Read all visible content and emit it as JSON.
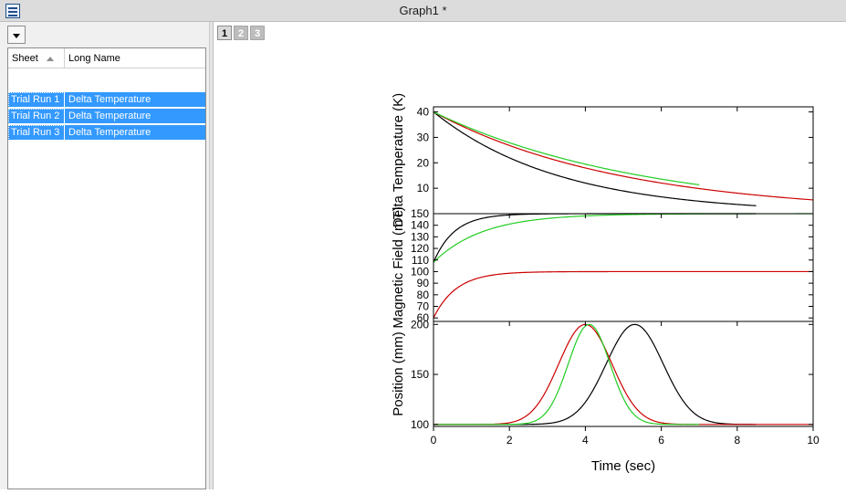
{
  "window": {
    "title": "Graph1 *",
    "icon": "graph-window-icon"
  },
  "sheet_list": {
    "columns": {
      "sheet": "Sheet",
      "long_name": "Long Name"
    },
    "rows": [
      {
        "sheet": "Trial Run 1",
        "long_name": "Delta Temperature"
      },
      {
        "sheet": "Trial Run 2",
        "long_name": "Delta Temperature"
      },
      {
        "sheet": "Trial Run 3",
        "long_name": "Delta Temperature"
      }
    ]
  },
  "page_tabs": [
    "1",
    "2",
    "3"
  ],
  "chart_data": {
    "type": "line",
    "xlabel": "Time (sec)",
    "xlim": [
      0,
      10
    ],
    "xticks": [
      "0",
      "2",
      "4",
      "6",
      "8",
      "10"
    ],
    "colors": {
      "black": "#000000",
      "red": "#cc0000",
      "green": "#22cc22"
    },
    "panels": [
      {
        "ylabel": "Delta Temperature (K)",
        "ylim": [
          0,
          42
        ],
        "yticks": [
          "10",
          "20",
          "30",
          "40"
        ],
        "series": [
          {
            "color": "black",
            "x_end": 8.5,
            "y0": 40,
            "k": 0.3
          },
          {
            "color": "red",
            "x_end": 10,
            "y0": 40,
            "k": 0.2
          },
          {
            "color": "green",
            "x_end": 7,
            "y0": 40,
            "k": 0.18
          }
        ]
      },
      {
        "ylabel": "Magnetic Field (mT)",
        "ylim": [
          57,
          150
        ],
        "yticks": [
          "60",
          "70",
          "80",
          "90",
          "100",
          "110",
          "120",
          "130",
          "140",
          "150"
        ],
        "series": [
          {
            "color": "black",
            "x_end": 8.5,
            "y0": 108,
            "y_inf": 150,
            "tau": 0.55
          },
          {
            "color": "green",
            "x_end": 10,
            "y0": 108,
            "y_inf": 150,
            "tau": 1.3
          },
          {
            "color": "red",
            "x_end": 10,
            "y0": 60,
            "y_inf": 100,
            "tau": 0.6
          }
        ]
      },
      {
        "ylabel": "Position (mm)",
        "ylim": [
          98,
          203
        ],
        "yticks": [
          "100",
          "150",
          "200"
        ],
        "series": [
          {
            "color": "black",
            "x_end": 8.5,
            "base": 100,
            "peak": 200,
            "center": 5.3,
            "sigma": 0.75
          },
          {
            "color": "red",
            "x_end": 10,
            "base": 100,
            "peak": 200,
            "center": 4.0,
            "sigma": 0.7
          },
          {
            "color": "green",
            "x_end": 7,
            "base": 100,
            "peak": 200,
            "center": 4.1,
            "sigma": 0.55
          }
        ]
      }
    ]
  }
}
